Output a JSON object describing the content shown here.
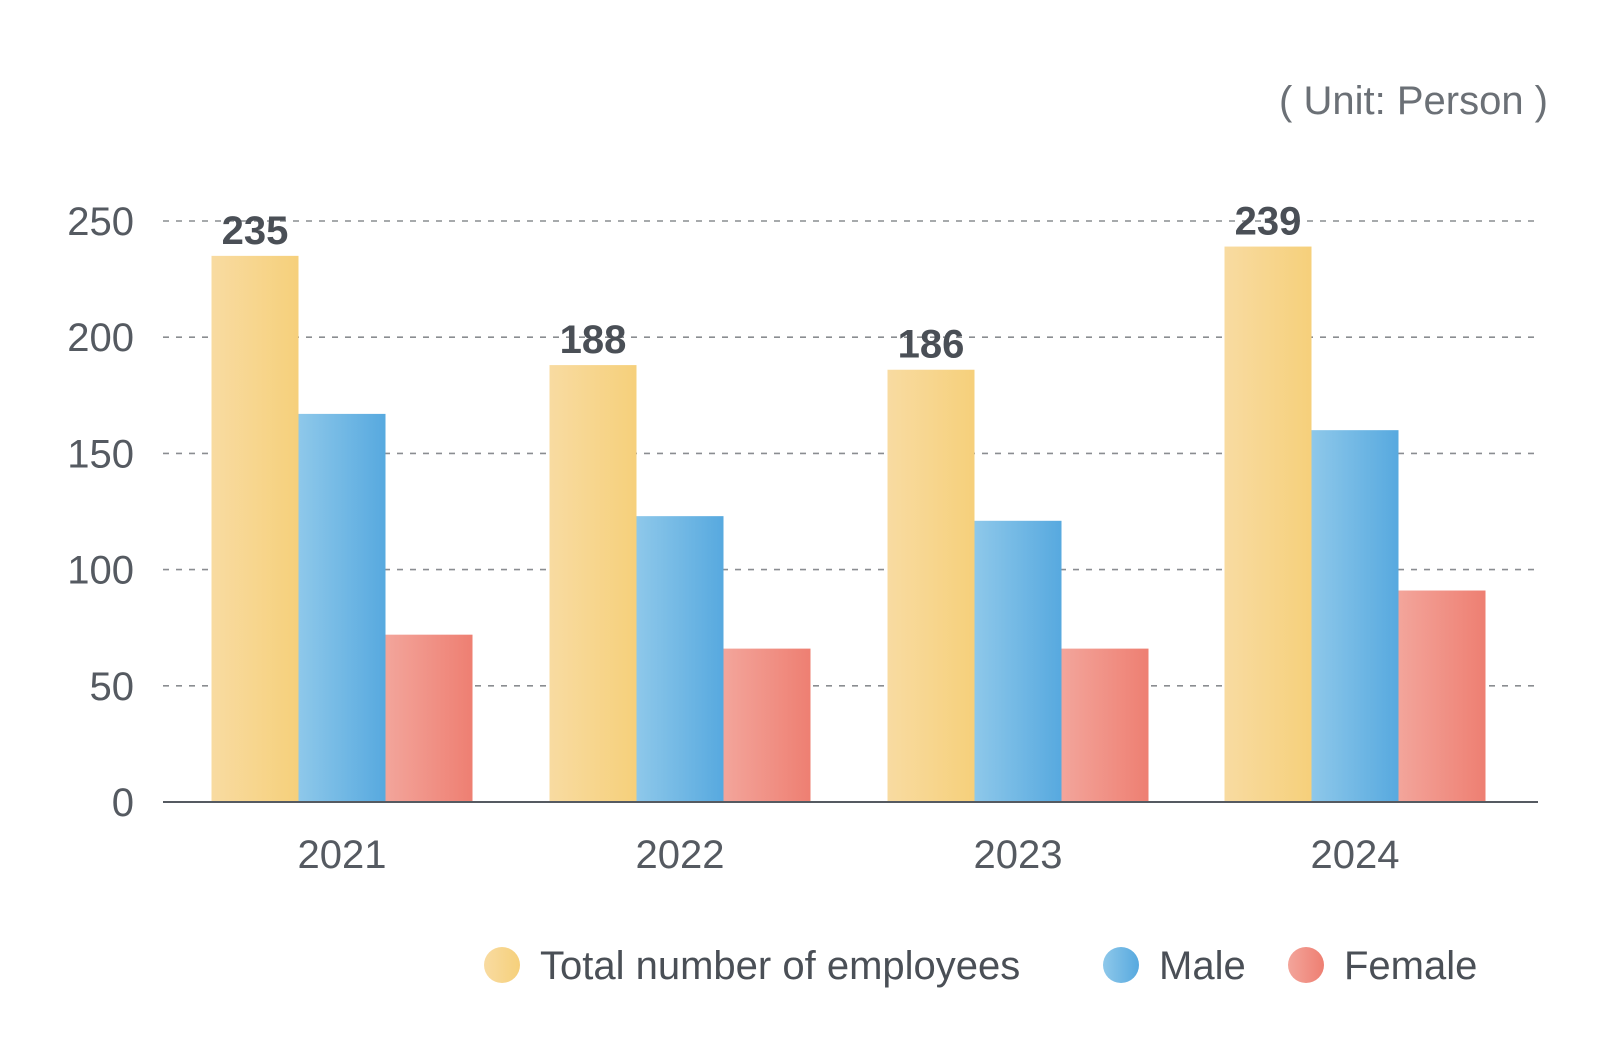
{
  "chart_data": {
    "type": "bar",
    "unit_label": "( Unit: Person )",
    "categories": [
      "2021",
      "2022",
      "2023",
      "2024"
    ],
    "series": [
      {
        "name": "Total number of employees",
        "values": [
          235,
          188,
          186,
          239
        ],
        "color_start": "#f8dba1",
        "color_end": "#f6d07b"
      },
      {
        "name": "Male",
        "values": [
          167,
          123,
          121,
          160
        ],
        "color_start": "#8ec8ea",
        "color_end": "#57a9df"
      },
      {
        "name": "Female",
        "values": [
          72,
          66,
          66,
          91
        ],
        "color_start": "#f3a59b",
        "color_end": "#ee7f72"
      }
    ],
    "data_labels": [
      "235",
      "188",
      "186",
      "239"
    ],
    "ylim": [
      0,
      250
    ],
    "yticks": [
      0,
      50,
      100,
      150,
      200,
      250
    ],
    "grid": true,
    "legend_position": "bottom-right"
  }
}
